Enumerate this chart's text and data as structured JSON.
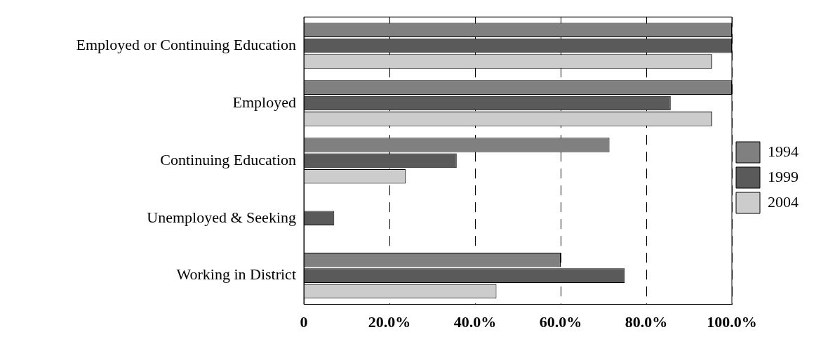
{
  "chart_data": {
    "type": "bar",
    "orientation": "horizontal",
    "categories": [
      "Employed or Continuing Education",
      "Employed",
      "Continuing Education",
      "Unemployed & Seeking",
      "Working in District"
    ],
    "series": [
      {
        "name": "1994",
        "color": "#808080",
        "values": [
          100,
          100,
          71.4,
          null,
          60
        ]
      },
      {
        "name": "1999",
        "color": "#5a5a5a",
        "values": [
          100,
          85.7,
          35.7,
          7.1,
          75
        ]
      },
      {
        "name": "2004",
        "color": "#cccccc",
        "values": [
          95.4,
          95.4,
          23.8,
          null,
          45
        ]
      }
    ],
    "xlim": [
      0,
      100
    ],
    "xticks": [
      0,
      {
        "value": 20,
        "label": "20.0%"
      },
      {
        "value": 40,
        "label": "40.0%"
      },
      {
        "value": 60,
        "label": "60.0%"
      },
      {
        "value": 80,
        "label": "80.0%"
      },
      {
        "value": 100,
        "label": "100.0%"
      }
    ],
    "grid": "x",
    "legend": "right"
  }
}
